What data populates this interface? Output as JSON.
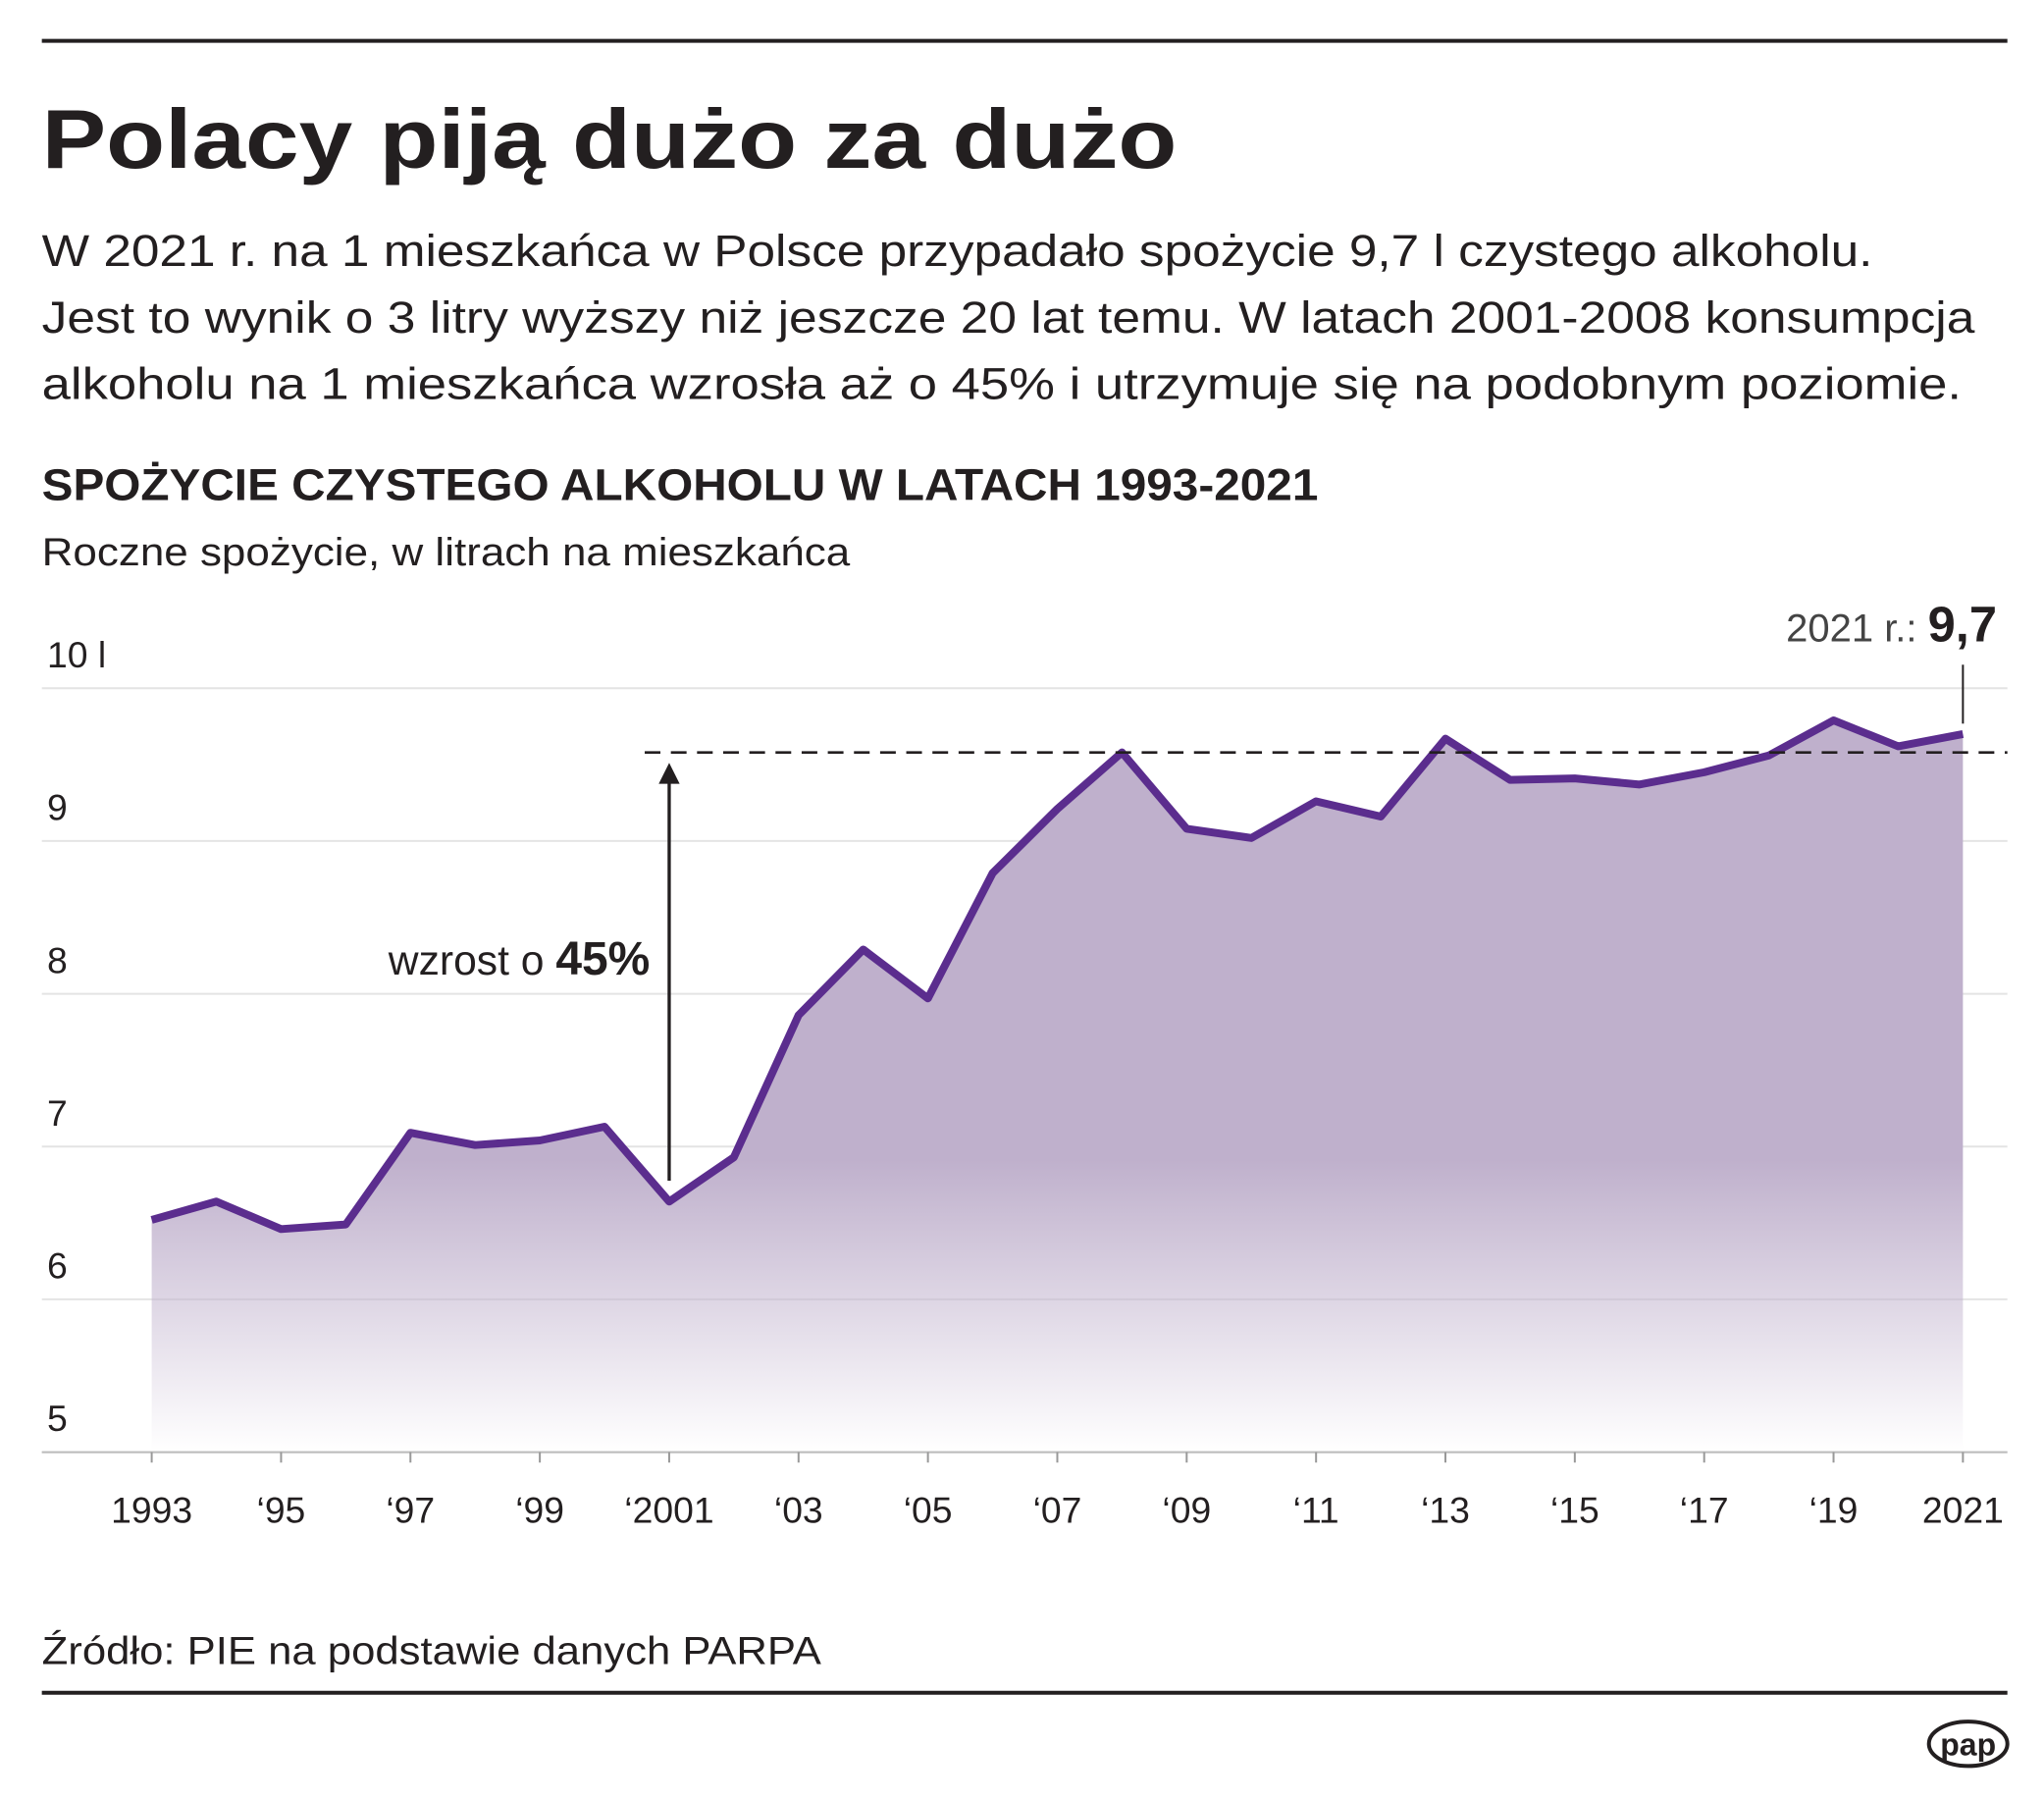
{
  "header": {
    "title": "Polacy piją dużo za dużo",
    "description": [
      "W 2021 r. na 1 mieszkańca w Polsce przypadało spożycie 9,7 l czystego alkoholu.",
      "Jest to wynik o 3 litry wyższy niż jeszcze 20 lat temu. W latach 2001-2008 konsumpcja",
      "alkoholu na 1 mieszkańca wzrosła aż o 45% i utrzymuje się na podobnym poziomie."
    ]
  },
  "chart_data": {
    "type": "area",
    "title": "SPOŻYCIE CZYSTEGO ALKOHOLU W LATACH 1993-2021",
    "subtitle": "Roczne spożycie, w litrach na mieszkańca",
    "categories": [
      "1993",
      null,
      "‘95",
      null,
      "‘97",
      null,
      "‘99",
      null,
      "‘2001",
      null,
      "‘03",
      null,
      "‘05",
      null,
      "‘07",
      null,
      "‘09",
      null,
      "‘11",
      null,
      "‘13",
      null,
      "‘15",
      null,
      "‘17",
      null,
      "‘19",
      null,
      "2021"
    ],
    "values": [
      6.52,
      6.64,
      6.46,
      6.49,
      7.09,
      7.01,
      7.04,
      7.13,
      6.64,
      6.93,
      7.86,
      8.29,
      7.97,
      8.79,
      9.21,
      9.58,
      9.08,
      9.02,
      9.26,
      9.16,
      9.67,
      9.4,
      9.41,
      9.37,
      9.45,
      9.56,
      9.79,
      9.62,
      9.7
    ],
    "value_labels": [
      null,
      null,
      null,
      null,
      null,
      null,
      null,
      null,
      null,
      null,
      null,
      null,
      null,
      null,
      null,
      null,
      null,
      null,
      null,
      null,
      null,
      null,
      null,
      null,
      null,
      null,
      null,
      null,
      "9,7"
    ],
    "color": "#5b2d8e",
    "area_color": "#bfb0cc",
    "ylim": [
      5,
      10
    ],
    "yticks": [
      5,
      6,
      7,
      8,
      9,
      {
        "value": 10,
        "label": "10 l"
      }
    ],
    "grid": true,
    "annotations": {
      "last_point": "2021 r.:",
      "growth_text": "wzrost o",
      "growth_value": "45%"
    }
  },
  "footer": {
    "source": "Źródło: PIE na podstawie danych PARPA",
    "logo": "pap"
  }
}
